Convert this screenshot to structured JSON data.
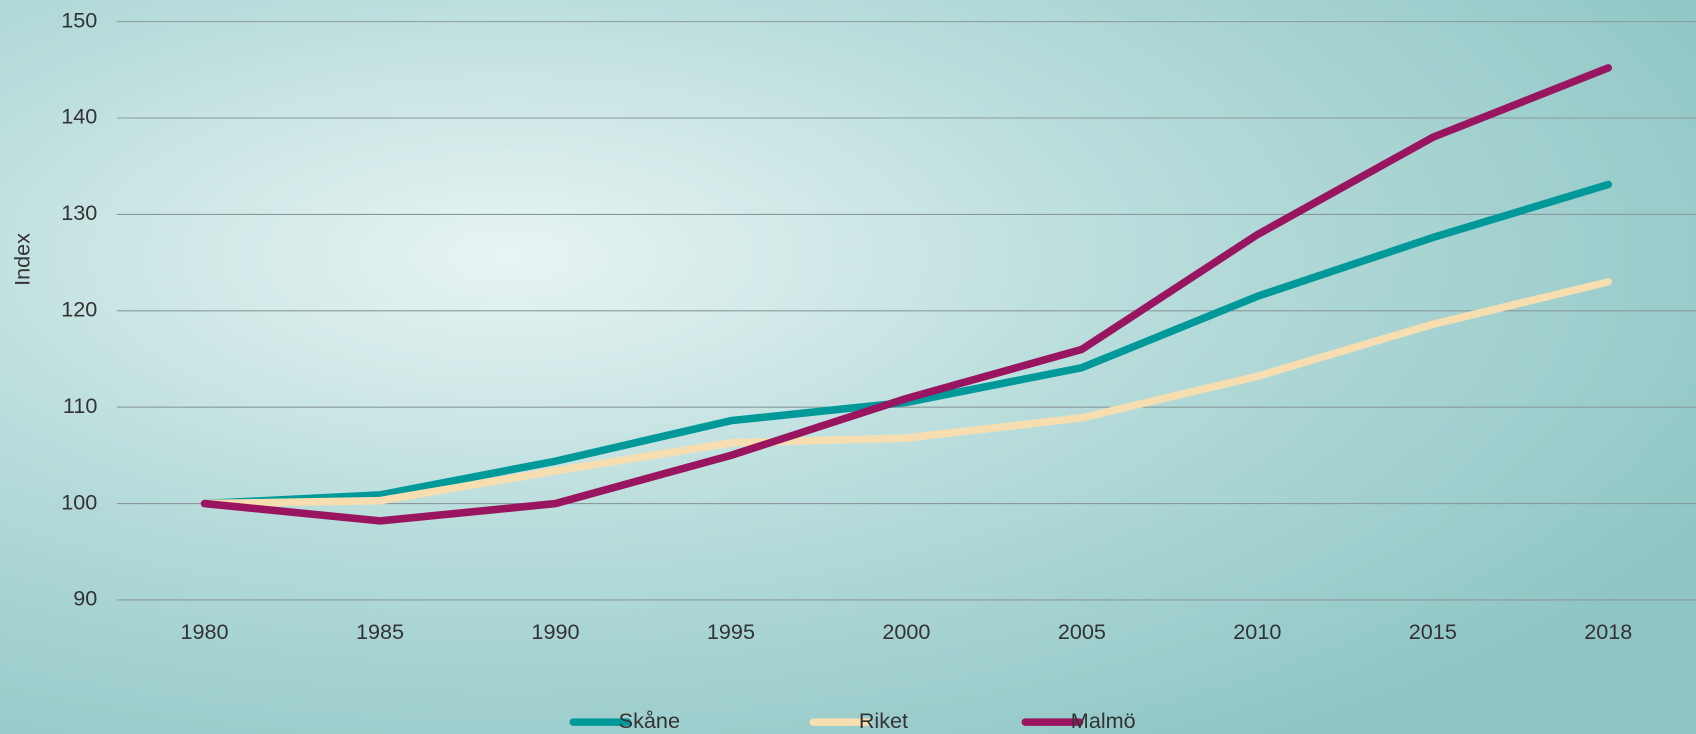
{
  "chart_data": {
    "type": "line",
    "y_label": "Index",
    "categories": [
      "1980",
      "1985",
      "1990",
      "1995",
      "2000",
      "2005",
      "2010",
      "2015",
      "2018"
    ],
    "series": [
      {
        "name": "Skåne",
        "color": "#00999a",
        "values": [
          100,
          100.9,
          104.4,
          108.6,
          110.5,
          114.1,
          121.5,
          127.6,
          133.1
        ]
      },
      {
        "name": "Riket",
        "color": "#f6deb0",
        "values": [
          100,
          100.3,
          103.4,
          106.3,
          106.8,
          108.9,
          113.2,
          118.6,
          123
        ]
      },
      {
        "name": "Malmö",
        "color": "#9a1560",
        "values": [
          100,
          98.2,
          100,
          105,
          110.9,
          116,
          127.9,
          138,
          145.2
        ]
      }
    ],
    "ylim": [
      90,
      150
    ],
    "yticks": [
      90,
      100,
      110,
      120,
      130,
      140,
      150
    ],
    "grid": true,
    "legend": "bottom"
  }
}
